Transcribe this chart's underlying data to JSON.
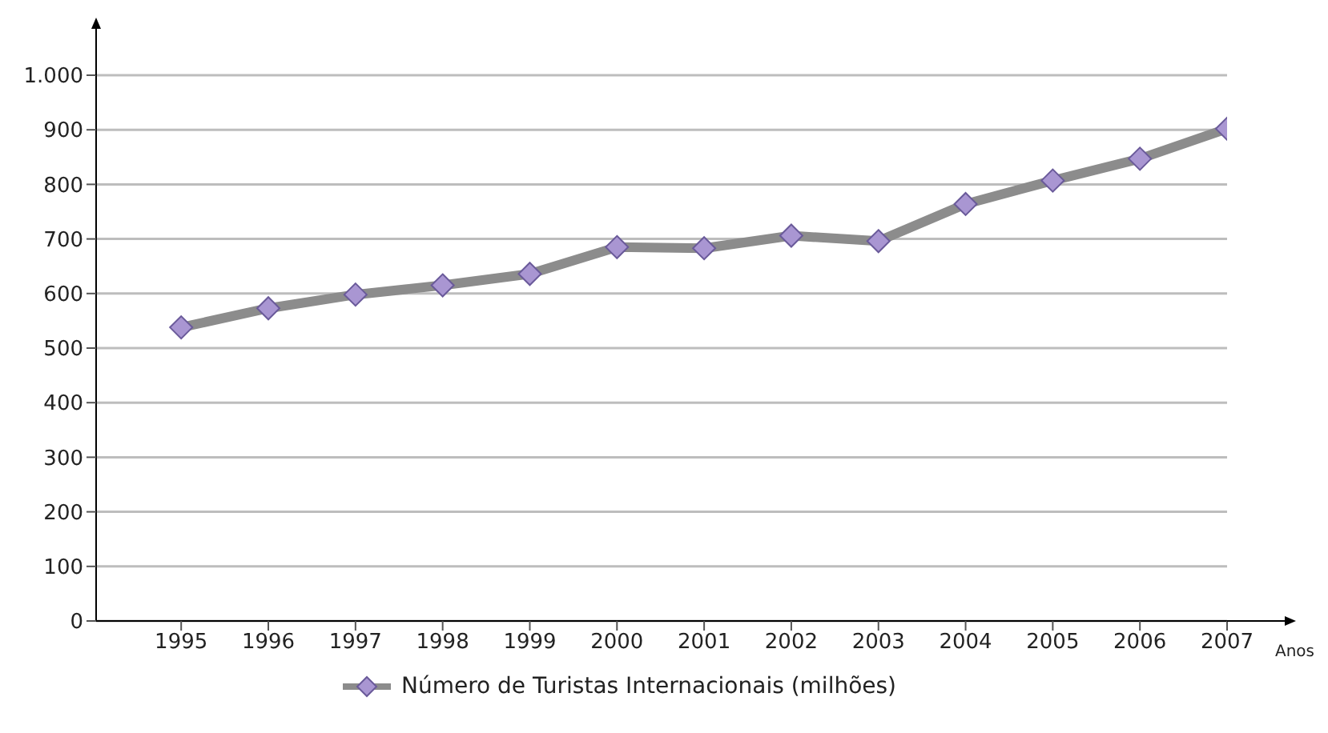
{
  "chart_data": {
    "type": "line",
    "xlabel": "Anos",
    "categories": [
      "1995",
      "1996",
      "1997",
      "1998",
      "1999",
      "2000",
      "2001",
      "2002",
      "2003",
      "2004",
      "2005",
      "2006",
      "2007"
    ],
    "series": [
      {
        "name": "Número de Turistas Internacionais (milhões)",
        "color": "#8c8c8c",
        "values": [
          538,
          573,
          598,
          615,
          636,
          685,
          683,
          706,
          696,
          764,
          807,
          847,
          902
        ]
      }
    ],
    "ylim": [
      0,
      1000
    ],
    "yticks": [
      0,
      100,
      200,
      300,
      400,
      500,
      600,
      700,
      800,
      900,
      {
        "value": 1000,
        "label": "1.000"
      }
    ],
    "grid": "y",
    "legend": "bottom",
    "marker": "diamond",
    "line_style": "solid"
  }
}
